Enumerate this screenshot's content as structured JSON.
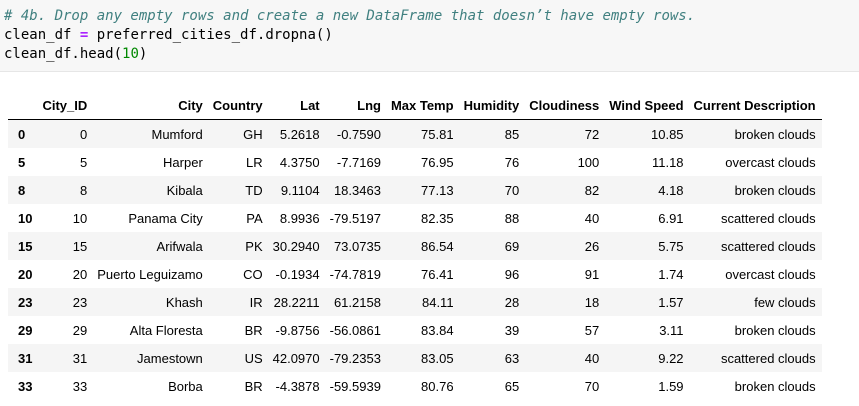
{
  "code": {
    "comment": "# 4b. Drop any empty rows and create a new DataFrame that doesn’t have empty rows.",
    "line2_var": "clean_df",
    "line2_op": "=",
    "line2_expr": "preferred_cities_df.dropna()",
    "line3_call": "clean_df.head(",
    "line3_num": "10",
    "line3_close": ")"
  },
  "table": {
    "columns": [
      "City_ID",
      "City",
      "Country",
      "Lat",
      "Lng",
      "Max Temp",
      "Humidity",
      "Cloudiness",
      "Wind Speed",
      "Current Description"
    ],
    "rows": [
      {
        "index": "0",
        "cells": [
          "0",
          "Mumford",
          "GH",
          "5.2618",
          "-0.7590",
          "75.81",
          "85",
          "72",
          "10.85",
          "broken clouds"
        ]
      },
      {
        "index": "5",
        "cells": [
          "5",
          "Harper",
          "LR",
          "4.3750",
          "-7.7169",
          "76.95",
          "76",
          "100",
          "11.18",
          "overcast clouds"
        ]
      },
      {
        "index": "8",
        "cells": [
          "8",
          "Kibala",
          "TD",
          "9.1104",
          "18.3463",
          "77.13",
          "70",
          "82",
          "4.18",
          "broken clouds"
        ]
      },
      {
        "index": "10",
        "cells": [
          "10",
          "Panama City",
          "PA",
          "8.9936",
          "-79.5197",
          "82.35",
          "88",
          "40",
          "6.91",
          "scattered clouds"
        ]
      },
      {
        "index": "15",
        "cells": [
          "15",
          "Arifwala",
          "PK",
          "30.2940",
          "73.0735",
          "86.54",
          "69",
          "26",
          "5.75",
          "scattered clouds"
        ]
      },
      {
        "index": "20",
        "cells": [
          "20",
          "Puerto Leguizamo",
          "CO",
          "-0.1934",
          "-74.7819",
          "76.41",
          "96",
          "91",
          "1.74",
          "overcast clouds"
        ]
      },
      {
        "index": "23",
        "cells": [
          "23",
          "Khash",
          "IR",
          "28.2211",
          "61.2158",
          "84.11",
          "28",
          "18",
          "1.57",
          "few clouds"
        ]
      },
      {
        "index": "29",
        "cells": [
          "29",
          "Alta Floresta",
          "BR",
          "-9.8756",
          "-56.0861",
          "83.84",
          "39",
          "57",
          "3.11",
          "broken clouds"
        ]
      },
      {
        "index": "31",
        "cells": [
          "31",
          "Jamestown",
          "US",
          "42.0970",
          "-79.2353",
          "83.05",
          "63",
          "40",
          "9.22",
          "scattered clouds"
        ]
      },
      {
        "index": "33",
        "cells": [
          "33",
          "Borba",
          "BR",
          "-4.3878",
          "-59.5939",
          "80.76",
          "65",
          "70",
          "1.59",
          "broken clouds"
        ]
      }
    ]
  }
}
